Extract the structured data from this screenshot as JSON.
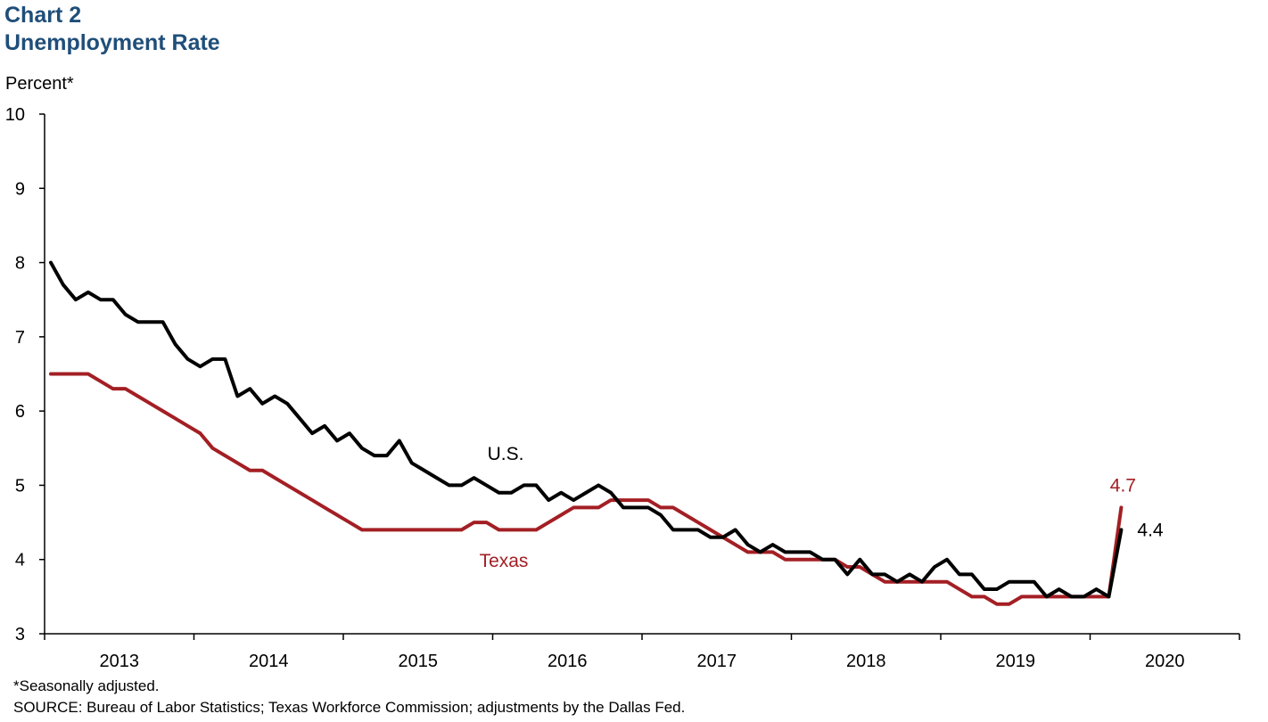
{
  "header": {
    "title": "Chart 2",
    "subtitle": "Unemployment Rate"
  },
  "footer": {
    "note": "*Seasonally adjusted.",
    "source": "SOURCE: Bureau of Labor Statistics; Texas Workforce Commission; adjustments by the Dallas Fed."
  },
  "chart_data": {
    "type": "line",
    "title": "Chart 2",
    "subtitle": "Unemployment Rate",
    "ylabel": "Percent*",
    "xlabel": "",
    "ylim": [
      3,
      10
    ],
    "yticks": [
      "3",
      "4",
      "5",
      "6",
      "7",
      "8",
      "9",
      "10"
    ],
    "xticks": [
      "2013",
      "2014",
      "2015",
      "2016",
      "2017",
      "2018",
      "2019",
      "2020"
    ],
    "x_start": "2013-01",
    "x_end": "2020-12",
    "grid": false,
    "series": [
      {
        "name": "U.S.",
        "color": "#000000",
        "label": "U.S.",
        "end_label": "4.4",
        "values": [
          8.0,
          7.7,
          7.5,
          7.6,
          7.5,
          7.5,
          7.3,
          7.2,
          7.2,
          7.2,
          6.9,
          6.7,
          6.6,
          6.7,
          6.7,
          6.2,
          6.3,
          6.1,
          6.2,
          6.1,
          5.9,
          5.7,
          5.8,
          5.6,
          5.7,
          5.5,
          5.4,
          5.4,
          5.6,
          5.3,
          5.2,
          5.1,
          5.0,
          5.0,
          5.1,
          5.0,
          4.9,
          4.9,
          5.0,
          5.0,
          4.8,
          4.9,
          4.8,
          4.9,
          5.0,
          4.9,
          4.7,
          4.7,
          4.7,
          4.6,
          4.4,
          4.4,
          4.4,
          4.3,
          4.3,
          4.4,
          4.2,
          4.1,
          4.2,
          4.1,
          4.1,
          4.1,
          4.0,
          4.0,
          3.8,
          4.0,
          3.8,
          3.8,
          3.7,
          3.8,
          3.7,
          3.9,
          4.0,
          3.8,
          3.8,
          3.6,
          3.6,
          3.7,
          3.7,
          3.7,
          3.5,
          3.6,
          3.5,
          3.5,
          3.6,
          3.5,
          4.4
        ]
      },
      {
        "name": "Texas",
        "color": "#a31f24",
        "label": "Texas",
        "end_label": "4.7",
        "values": [
          6.5,
          6.5,
          6.5,
          6.5,
          6.4,
          6.3,
          6.3,
          6.2,
          6.1,
          6.0,
          5.9,
          5.8,
          5.7,
          5.5,
          5.4,
          5.3,
          5.2,
          5.2,
          5.1,
          5.0,
          4.9,
          4.8,
          4.7,
          4.6,
          4.5,
          4.4,
          4.4,
          4.4,
          4.4,
          4.4,
          4.4,
          4.4,
          4.4,
          4.4,
          4.5,
          4.5,
          4.4,
          4.4,
          4.4,
          4.4,
          4.5,
          4.6,
          4.7,
          4.7,
          4.7,
          4.8,
          4.8,
          4.8,
          4.8,
          4.7,
          4.7,
          4.6,
          4.5,
          4.4,
          4.3,
          4.2,
          4.1,
          4.1,
          4.1,
          4.0,
          4.0,
          4.0,
          4.0,
          4.0,
          3.9,
          3.9,
          3.8,
          3.7,
          3.7,
          3.7,
          3.7,
          3.7,
          3.7,
          3.6,
          3.5,
          3.5,
          3.4,
          3.4,
          3.5,
          3.5,
          3.5,
          3.5,
          3.5,
          3.5,
          3.5,
          3.5,
          4.7
        ]
      }
    ]
  }
}
